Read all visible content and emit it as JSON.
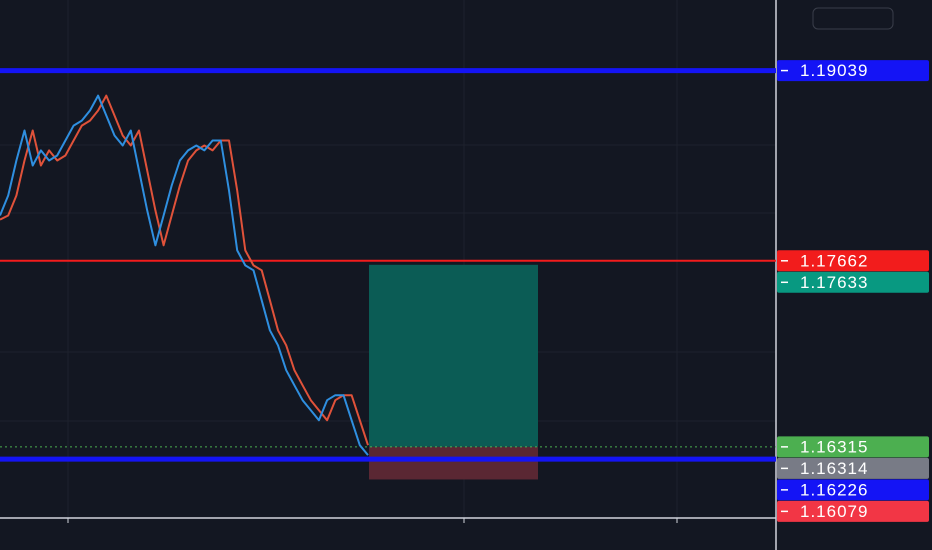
{
  "chart_data": {
    "type": "line",
    "ylim": [
      1.158,
      1.1955
    ],
    "series": [
      {
        "color": "#2f8fe0",
        "values": [
          1.1799,
          1.18135,
          1.18388,
          1.18605,
          1.18352,
          1.18461,
          1.18388,
          1.18424,
          1.18533,
          1.18641,
          1.18677,
          1.1875,
          1.18858,
          1.18714,
          1.18569,
          1.18497,
          1.18605,
          1.18316,
          1.18027,
          1.17774,
          1.1799,
          1.18207,
          1.18388,
          1.18461,
          1.18497,
          1.18461,
          1.18533,
          1.18533,
          1.18171,
          1.17737,
          1.17629,
          1.17593,
          1.17376,
          1.17159,
          1.1705,
          1.1687,
          1.16761,
          1.16653,
          1.1658,
          1.16508,
          1.16653,
          1.16689,
          1.16689,
          1.16508,
          1.16327,
          1.16255
        ]
      },
      {
        "color": "#e0523a",
        "values": [
          1.1796,
          1.1799,
          1.18135,
          1.18388,
          1.18605,
          1.18352,
          1.18461,
          1.18388,
          1.18424,
          1.18533,
          1.18641,
          1.18677,
          1.1875,
          1.18858,
          1.18714,
          1.18569,
          1.18497,
          1.18605,
          1.18316,
          1.18027,
          1.17774,
          1.1799,
          1.18207,
          1.18388,
          1.18461,
          1.18497,
          1.18461,
          1.18533,
          1.18533,
          1.18171,
          1.17737,
          1.17629,
          1.17593,
          1.17376,
          1.17159,
          1.1705,
          1.1687,
          1.16761,
          1.16653,
          1.1658,
          1.16508,
          1.16653,
          1.16689,
          1.16689,
          1.16508,
          1.16327
        ]
      }
    ],
    "price_labels": [
      {
        "value": 1.19039,
        "color": "#1414f5",
        "line": "thick"
      },
      {
        "value": 1.17662,
        "color": "#f21c1c",
        "line": "thin"
      },
      {
        "value": 1.17633,
        "color": "#089981"
      },
      {
        "value": 1.16315,
        "color": "#4caf50",
        "line": "dotted"
      },
      {
        "value": 1.16314,
        "color": "#787b86"
      },
      {
        "value": 1.16226,
        "color": "#1414f5",
        "line": "thick"
      },
      {
        "value": 1.16079,
        "color": "#f23645"
      }
    ],
    "position": {
      "target": 1.17633,
      "entry": 1.16315,
      "stop": 1.16079
    }
  }
}
